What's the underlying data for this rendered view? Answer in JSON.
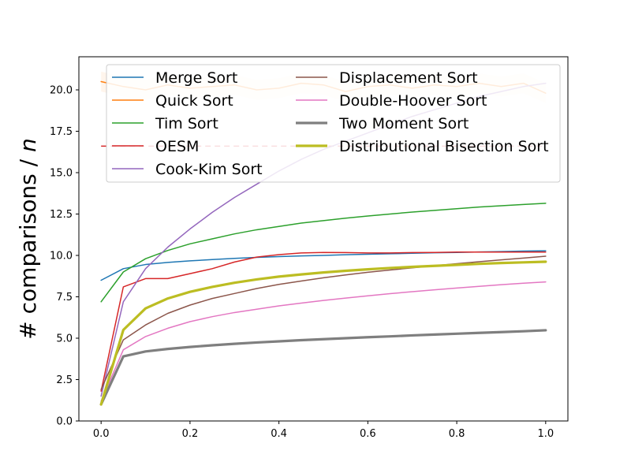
{
  "chart_data": {
    "type": "line",
    "title": "",
    "xlabel": "",
    "ylabel": "# comparisons / ",
    "ylabel_italic": "n",
    "xlim": [
      -0.05,
      1.05
    ],
    "ylim": [
      0,
      22
    ],
    "x_ticks": [
      "0.0",
      "0.2",
      "0.4",
      "0.6",
      "0.8",
      "1.0"
    ],
    "y_ticks": [
      "0.0",
      "2.5",
      "5.0",
      "7.5",
      "10.0",
      "12.5",
      "15.0",
      "17.5",
      "20.0"
    ],
    "grid": false,
    "legend_position": "upper",
    "x": [
      0.0,
      0.05,
      0.1,
      0.15,
      0.2,
      0.25,
      0.3,
      0.35,
      0.4,
      0.45,
      0.5,
      0.55,
      0.6,
      0.65,
      0.7,
      0.75,
      0.8,
      0.85,
      0.9,
      0.95,
      1.0
    ],
    "series": [
      {
        "name": "Merge Sort",
        "color": "#1f77b4",
        "width": 1.5,
        "values": [
          8.5,
          9.2,
          9.45,
          9.58,
          9.67,
          9.75,
          9.82,
          9.88,
          9.93,
          9.97,
          10.0,
          10.04,
          10.07,
          10.1,
          10.13,
          10.16,
          10.18,
          10.21,
          10.23,
          10.26,
          10.28
        ]
      },
      {
        "name": "Quick Sort",
        "color": "#ff7f0e",
        "width": 1.5,
        "values": [
          20.5,
          20.2,
          20.0,
          20.3,
          20.1,
          20.2,
          20.3,
          20.0,
          20.1,
          20.4,
          20.3,
          19.9,
          20.2,
          20.3,
          20.1,
          20.3,
          20.2,
          20.4,
          20.2,
          20.4,
          19.8
        ],
        "band": 0.6
      },
      {
        "name": "Tim Sort",
        "color": "#2ca02c",
        "width": 1.5,
        "values": [
          7.2,
          9.0,
          9.8,
          10.3,
          10.7,
          11.0,
          11.3,
          11.55,
          11.75,
          11.95,
          12.1,
          12.25,
          12.38,
          12.5,
          12.62,
          12.72,
          12.82,
          12.92,
          13.0,
          13.08,
          13.15
        ]
      },
      {
        "name": "OESM",
        "color": "#d62728",
        "width": 1.5,
        "values": [
          1.8,
          8.1,
          8.6,
          8.6,
          8.9,
          9.2,
          9.6,
          9.9,
          10.05,
          10.15,
          10.18,
          10.17,
          10.15,
          10.15,
          10.17,
          10.18,
          10.2,
          10.2,
          10.2,
          10.2,
          10.2
        ]
      },
      {
        "name": "Cook-Kim Sort",
        "color": "#9467bd",
        "width": 1.5,
        "values": [
          1.5,
          7.2,
          9.2,
          10.5,
          11.6,
          12.6,
          13.5,
          14.3,
          15.1,
          15.8,
          16.4,
          16.9,
          17.4,
          17.9,
          18.4,
          18.8,
          19.2,
          19.6,
          19.9,
          20.2,
          20.4
        ]
      },
      {
        "name": "Displacement Sort",
        "color": "#8c564b",
        "width": 1.5,
        "values": [
          1.9,
          4.9,
          5.8,
          6.5,
          7.0,
          7.4,
          7.7,
          8.0,
          8.25,
          8.45,
          8.65,
          8.82,
          8.98,
          9.12,
          9.25,
          9.38,
          9.5,
          9.62,
          9.73,
          9.84,
          9.95
        ]
      },
      {
        "name": "Double-Hoover Sort",
        "color": "#e377c2",
        "width": 1.5,
        "values": [
          1.2,
          4.3,
          5.1,
          5.6,
          6.0,
          6.3,
          6.55,
          6.75,
          6.95,
          7.12,
          7.28,
          7.42,
          7.56,
          7.69,
          7.81,
          7.92,
          8.03,
          8.13,
          8.23,
          8.32,
          8.4
        ]
      },
      {
        "name": "Two Moment Sort",
        "color": "#7f7f7f",
        "width": 3.2,
        "values": [
          1.0,
          3.9,
          4.2,
          4.35,
          4.47,
          4.57,
          4.66,
          4.74,
          4.81,
          4.88,
          4.94,
          5.0,
          5.06,
          5.11,
          5.17,
          5.22,
          5.27,
          5.32,
          5.37,
          5.42,
          5.48
        ]
      },
      {
        "name": "Distributional Bisection Sort",
        "color": "#bcbd22",
        "width": 3.2,
        "values": [
          1.0,
          5.5,
          6.8,
          7.4,
          7.8,
          8.1,
          8.35,
          8.55,
          8.72,
          8.85,
          8.97,
          9.07,
          9.16,
          9.24,
          9.31,
          9.37,
          9.43,
          9.49,
          9.54,
          9.58,
          9.62
        ]
      }
    ],
    "dashed_line": {
      "color": "#d62728",
      "y": 16.6,
      "x_range": [
        0.0,
        1.0
      ]
    }
  }
}
